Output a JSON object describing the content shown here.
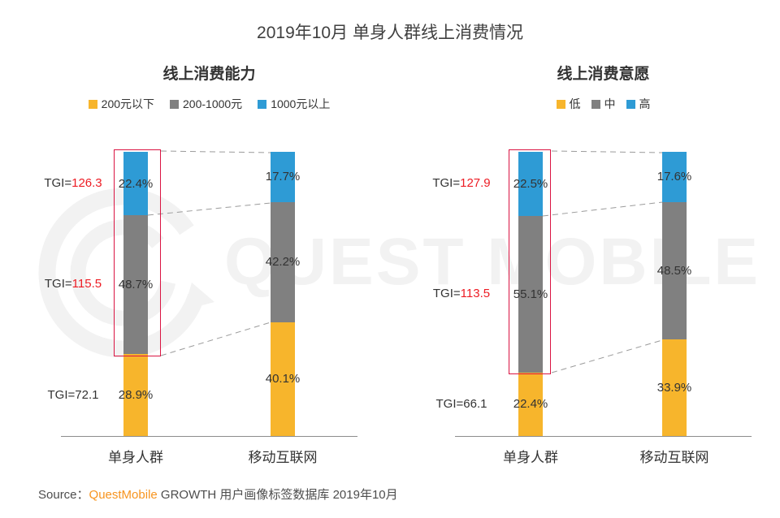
{
  "page_title": "2019年10月 单身人群线上消费情况",
  "watermark": {
    "text": "QUEST MOBILE",
    "logo": "questmobile-logo"
  },
  "colors": {
    "series_yellow": "#F7B52C",
    "series_gray": "#808080",
    "series_blue": "#2E9BD5",
    "tgi_red": "#ED1C24",
    "highlight_box_red": "#DA1442",
    "axis_gray": "#8C8C8C",
    "text_dark": "#333333",
    "source_brand_orange": "#F7941E",
    "watermark_gray": "#F2F2F2"
  },
  "source": {
    "prefix": "Source：",
    "brand": "QuestMobile",
    "rest": " GROWTH 用户画像标签数据库 2019年10月"
  },
  "chart_data": [
    {
      "type": "bar",
      "stacked": true,
      "title": "线上消费能力",
      "legend_position": "top",
      "grid": false,
      "value_axis": {
        "min": 0,
        "max": 100,
        "unit": "%",
        "visible": false
      },
      "categories": [
        "单身人群",
        "移动互联网"
      ],
      "series": [
        {
          "name": "200元以下",
          "color": "#F7B52C",
          "values": [
            28.9,
            40.1
          ]
        },
        {
          "name": "200-1000元",
          "color": "#808080",
          "values": [
            48.7,
            42.2
          ]
        },
        {
          "name": "1000元以上",
          "color": "#2E9BD5",
          "values": [
            22.4,
            17.7
          ]
        }
      ],
      "tgi_labels": [
        {
          "prefix": "TGI=",
          "value": "126.3",
          "highlighted": true,
          "segment": "1000元以上",
          "applies_to": "单身人群"
        },
        {
          "prefix": "TGI=",
          "value": "115.5",
          "highlighted": true,
          "segment": "200-1000元",
          "applies_to": "单身人群"
        },
        {
          "prefix": "TGI=",
          "value": "72.1",
          "highlighted": false,
          "segment": "200元以下",
          "applies_to": "单身人群"
        }
      ],
      "highlight_box": "单身人群 200-1000元 + 1000元以上"
    },
    {
      "type": "bar",
      "stacked": true,
      "title": "线上消费意愿",
      "legend_position": "top",
      "grid": false,
      "value_axis": {
        "min": 0,
        "max": 100,
        "unit": "%",
        "visible": false
      },
      "categories": [
        "单身人群",
        "移动互联网"
      ],
      "series": [
        {
          "name": "低",
          "color": "#F7B52C",
          "values": [
            22.4,
            33.9
          ]
        },
        {
          "name": "中",
          "color": "#808080",
          "values": [
            55.1,
            48.5
          ]
        },
        {
          "name": "高",
          "color": "#2E9BD5",
          "values": [
            22.5,
            17.6
          ]
        }
      ],
      "tgi_labels": [
        {
          "prefix": "TGI=",
          "value": "127.9",
          "highlighted": true,
          "segment": "高",
          "applies_to": "单身人群"
        },
        {
          "prefix": "TGI=",
          "value": "113.5",
          "highlighted": true,
          "segment": "中",
          "applies_to": "单身人群"
        },
        {
          "prefix": "TGI=",
          "value": "66.1",
          "highlighted": false,
          "segment": "低",
          "applies_to": "单身人群"
        }
      ],
      "highlight_box": "单身人群 中 + 高"
    }
  ]
}
